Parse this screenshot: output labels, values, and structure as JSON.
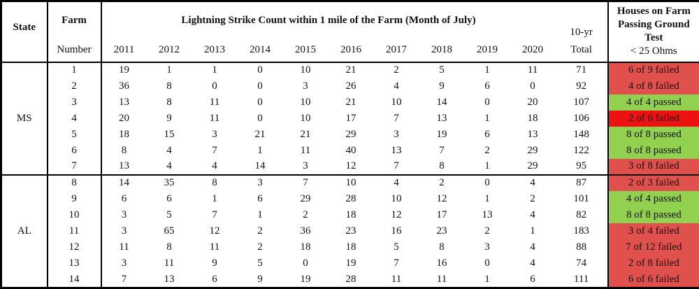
{
  "header": {
    "state": "State",
    "farm_line1": "Farm",
    "farm_line2": "Number",
    "strike_title": "Lightning Strike Count within 1 mile of the Farm (Month of July)",
    "years": [
      "2011",
      "2012",
      "2013",
      "2014",
      "2015",
      "2016",
      "2017",
      "2018",
      "2019",
      "2020"
    ],
    "total_line1": "10-yr",
    "total_line2": "Total",
    "houses_line1": "Houses on Farm",
    "houses_line2": "Passing Ground",
    "houses_line3": "Test",
    "houses_line4": "< 25 Ohms"
  },
  "colors": {
    "red": "#E0504D",
    "bright_red": "#ED1111",
    "green": "#92D050",
    "border": "#000000",
    "text": "#111111"
  },
  "groups": [
    {
      "state": "MS",
      "rows": [
        {
          "farm": "1",
          "strikes": [
            "19",
            "1",
            "1",
            "0",
            "10",
            "21",
            "2",
            "5",
            "1",
            "11"
          ],
          "total": "71",
          "status": "6 of 9 failed",
          "status_color": "red"
        },
        {
          "farm": "2",
          "strikes": [
            "36",
            "8",
            "0",
            "0",
            "3",
            "26",
            "4",
            "9",
            "6",
            "0"
          ],
          "total": "92",
          "status": "4 of 8 failed",
          "status_color": "red"
        },
        {
          "farm": "3",
          "strikes": [
            "13",
            "8",
            "11",
            "0",
            "10",
            "21",
            "10",
            "14",
            "0",
            "20"
          ],
          "total": "107",
          "status": "4 of 4 passed",
          "status_color": "green"
        },
        {
          "farm": "4",
          "strikes": [
            "20",
            "9",
            "11",
            "0",
            "10",
            "17",
            "7",
            "13",
            "1",
            "18"
          ],
          "total": "106",
          "status": "2 of 6 failed",
          "status_color": "bright_red"
        },
        {
          "farm": "5",
          "strikes": [
            "18",
            "15",
            "3",
            "21",
            "21",
            "29",
            "3",
            "19",
            "6",
            "13"
          ],
          "total": "148",
          "status": "8 of 8 passed",
          "status_color": "green"
        },
        {
          "farm": "6",
          "strikes": [
            "8",
            "4",
            "7",
            "1",
            "11",
            "40",
            "13",
            "7",
            "2",
            "29"
          ],
          "total": "122",
          "status": "8 of 8 passed",
          "status_color": "green"
        },
        {
          "farm": "7",
          "strikes": [
            "13",
            "4",
            "4",
            "14",
            "3",
            "12",
            "7",
            "8",
            "1",
            "29"
          ],
          "total": "95",
          "status": "3 of 8 failed",
          "status_color": "red"
        }
      ]
    },
    {
      "state": "AL",
      "rows": [
        {
          "farm": "8",
          "strikes": [
            "14",
            "35",
            "8",
            "3",
            "7",
            "10",
            "4",
            "2",
            "0",
            "4"
          ],
          "total": "87",
          "status": "2 of 3 failed",
          "status_color": "red"
        },
        {
          "farm": "9",
          "strikes": [
            "6",
            "6",
            "1",
            "6",
            "29",
            "28",
            "10",
            "12",
            "1",
            "2"
          ],
          "total": "101",
          "status": "4 of 4 passed",
          "status_color": "green"
        },
        {
          "farm": "10",
          "strikes": [
            "3",
            "5",
            "7",
            "1",
            "2",
            "18",
            "12",
            "17",
            "13",
            "4"
          ],
          "total": "82",
          "status": "8 of 8 passed",
          "status_color": "green"
        },
        {
          "farm": "11",
          "strikes": [
            "3",
            "65",
            "12",
            "2",
            "36",
            "23",
            "16",
            "23",
            "2",
            "1"
          ],
          "total": "183",
          "status": "3 of 4 failed",
          "status_color": "red"
        },
        {
          "farm": "12",
          "strikes": [
            "11",
            "8",
            "11",
            "2",
            "18",
            "18",
            "5",
            "8",
            "3",
            "4"
          ],
          "total": "88",
          "status": "7 of 12 failed",
          "status_color": "red"
        },
        {
          "farm": "13",
          "strikes": [
            "3",
            "11",
            "9",
            "5",
            "0",
            "19",
            "7",
            "16",
            "0",
            "4"
          ],
          "total": "74",
          "status": "2 of 8 failed",
          "status_color": "red"
        },
        {
          "farm": "14",
          "strikes": [
            "7",
            "13",
            "6",
            "9",
            "19",
            "28",
            "11",
            "11",
            "1",
            "6"
          ],
          "total": "111",
          "status": "6 of 6 failed",
          "status_color": "red"
        }
      ]
    }
  ]
}
